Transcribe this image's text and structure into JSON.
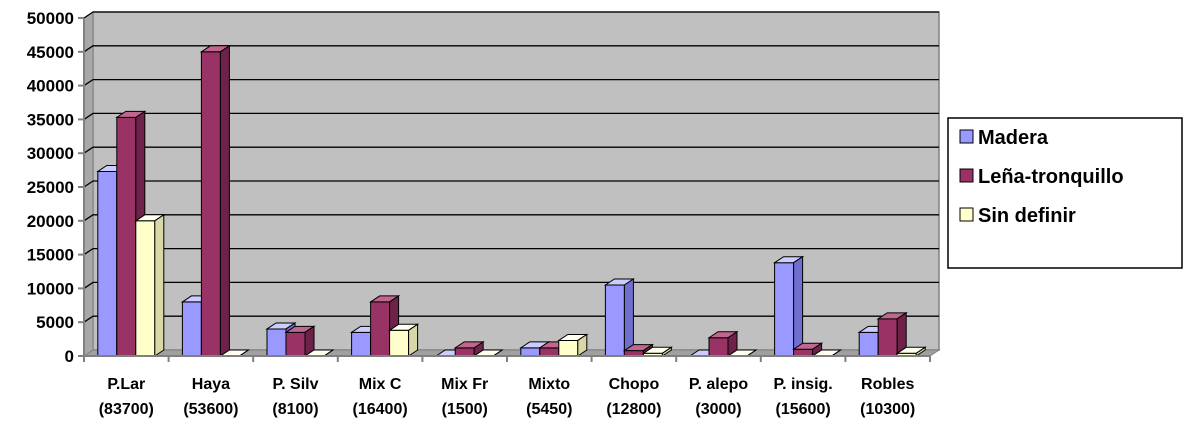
{
  "chart_data": {
    "type": "bar",
    "title": "",
    "xlabel": "",
    "ylabel": "",
    "ylim": [
      0,
      50000
    ],
    "yticks": [
      0,
      5000,
      10000,
      15000,
      20000,
      25000,
      30000,
      35000,
      40000,
      45000,
      50000
    ],
    "grid": true,
    "legend_position": "right",
    "categories": [
      [
        "P.Lar",
        "(83700)"
      ],
      [
        "Haya",
        "(53600)"
      ],
      [
        "P. Silv",
        "(8100)"
      ],
      [
        "Mix C",
        "(16400)"
      ],
      [
        "Mix Fr",
        "(1500)"
      ],
      [
        "Mixto",
        "(5450)"
      ],
      [
        "Chopo",
        "(12800)"
      ],
      [
        "P. alepo",
        "(3000)"
      ],
      [
        "P. insig.",
        "(15600)"
      ],
      [
        "Robles",
        "(10300)"
      ]
    ],
    "series": [
      {
        "name": "Madera",
        "color": "#9999ff",
        "top_color": "#ccccff",
        "side_color": "#6f6fd0",
        "values": [
          27300,
          8000,
          4000,
          3500,
          0,
          1200,
          10500,
          0,
          13800,
          3500
        ]
      },
      {
        "name": "Leña-tronquillo",
        "color": "#993366",
        "top_color": "#c0668f",
        "side_color": "#6e2249",
        "values": [
          35300,
          45000,
          3500,
          8000,
          1200,
          1200,
          800,
          2700,
          1000,
          5500
        ]
      },
      {
        "name": "Sin definir",
        "color": "#ffffcc",
        "top_color": "#fffff0",
        "side_color": "#d8d8a6",
        "values": [
          20000,
          0,
          0,
          3800,
          0,
          2300,
          400,
          0,
          0,
          400
        ]
      }
    ]
  }
}
